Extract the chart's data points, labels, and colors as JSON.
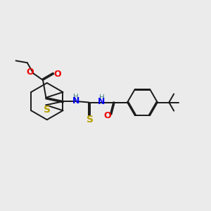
{
  "background_color": "#ebebeb",
  "bond_color": "#1a1a1a",
  "S_color": "#b8a000",
  "N_color": "#0000ee",
  "O_color": "#ee0000",
  "H_color": "#3a8080",
  "figsize": [
    3.0,
    3.0
  ],
  "dpi": 100,
  "xlim": [
    0,
    10
  ],
  "ylim": [
    0,
    10
  ]
}
